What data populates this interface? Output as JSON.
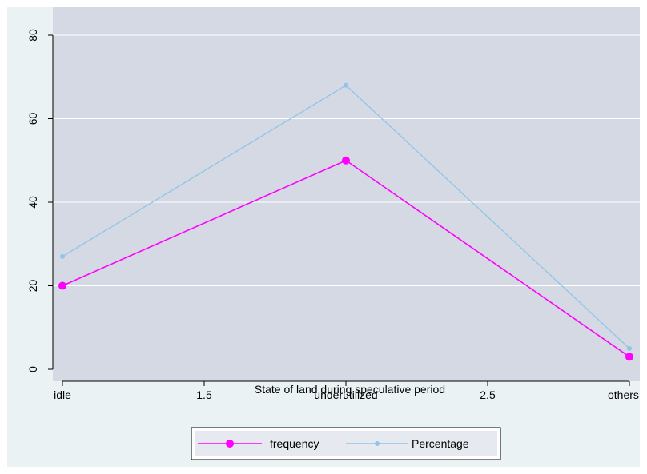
{
  "chart_data": {
    "type": "line",
    "xlabel": "State of land during speculative period",
    "ylabel": "",
    "x_ticks": [
      {
        "value": 1,
        "label": "idle"
      },
      {
        "value": 1.5,
        "label": "1.5"
      },
      {
        "value": 2,
        "label": "underutilized"
      },
      {
        "value": 2.5,
        "label": "2.5"
      },
      {
        "value": 3,
        "label": "others"
      }
    ],
    "y_ticks": [
      0,
      20,
      40,
      60,
      80
    ],
    "xlim": [
      1,
      3
    ],
    "ylim": [
      0,
      80
    ],
    "grid": "horizontal",
    "legend_position": "bottom",
    "series": [
      {
        "name": "frequency",
        "color": "#ff00ff",
        "marker": "large-dot",
        "x": [
          1,
          2,
          3
        ],
        "values": [
          20,
          50,
          3
        ]
      },
      {
        "name": "Percentage",
        "color": "#8ec5e8",
        "marker": "small-dot",
        "x": [
          1,
          2,
          3
        ],
        "values": [
          27,
          68,
          5
        ]
      }
    ],
    "colors": {
      "plot_background": "#d5d9e3",
      "outer_background": "#eaf2f3",
      "legend_background": "#e6e9ef"
    }
  }
}
